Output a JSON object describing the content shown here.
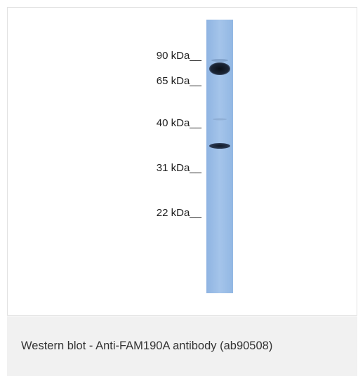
{
  "blot": {
    "markers": [
      {
        "label": "90 kDa__"
      },
      {
        "label": "65 kDa__"
      },
      {
        "label": "40 kDa__"
      },
      {
        "label": "31 kDa__"
      },
      {
        "label": "22 kDa__"
      }
    ],
    "lane_color": "#9ec0e8"
  },
  "caption": {
    "text": "Western blot - Anti-FAM190A antibody (ab90508)"
  }
}
